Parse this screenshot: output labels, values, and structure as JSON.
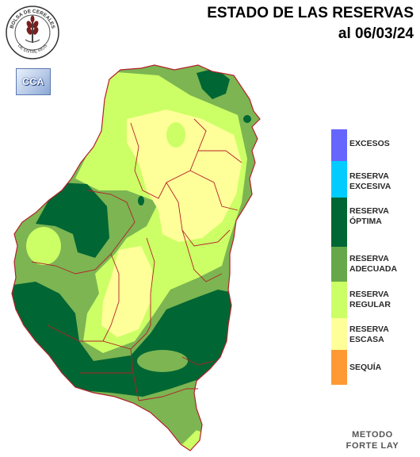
{
  "header": {
    "title": "ESTADO DE LAS RESERVAS",
    "date": "al 06/03/24"
  },
  "logos": {
    "bolsa_top": "BOLSA DE CEREALES",
    "bolsa_bottom": "DE ENTRE RIOS",
    "cca": "CCA"
  },
  "legend": [
    {
      "label": "EXCESOS",
      "color": "#6666ff"
    },
    {
      "label": "RESERVA\nEXCESIVA",
      "color": "#00ccff"
    },
    {
      "label": "RESERVA\nÓPTIMA",
      "color": "#006633"
    },
    {
      "label": "RESERVA\nADECUADA",
      "color": "#66a849"
    },
    {
      "label": "RESERVA\nREGULAR",
      "color": "#ccff66"
    },
    {
      "label": "RESERVA\nESCASA",
      "color": "#ffff99"
    },
    {
      "label": "SEQUÍA",
      "color": "#ff9933"
    }
  ],
  "footer": {
    "method_line1": "METODO",
    "method_line2": "FORTE LAY"
  }
}
